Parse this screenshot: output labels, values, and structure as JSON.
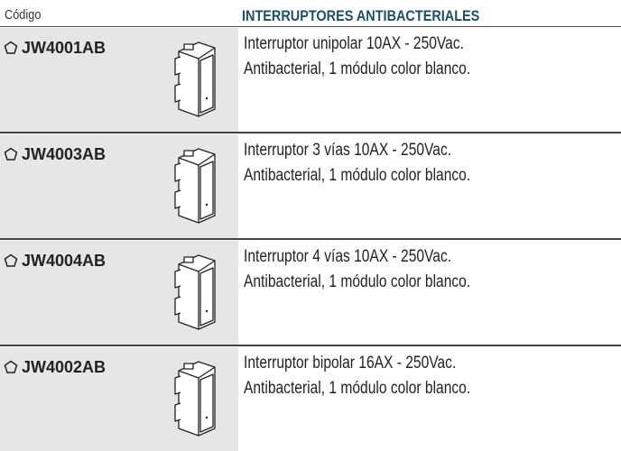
{
  "header": {
    "code_label": "Código",
    "title": "INTERRUPTORES ANTIBACTERIALES"
  },
  "rows": [
    {
      "code": "JW4001AB",
      "description": [
        "Interruptor unipolar 10AX - 250Vac.",
        "Antibacterial, 1 módulo color blanco."
      ]
    },
    {
      "code": "JW4003AB",
      "description": [
        "Interruptor 3 vías 10AX - 250Vac.",
        "Antibacterial, 1 módulo color blanco."
      ]
    },
    {
      "code": "JW4004AB",
      "description": [
        "Interruptor 4 vías 10AX - 250Vac.",
        "Antibacterial, 1 módulo color blanco."
      ]
    },
    {
      "code": "JW4002AB",
      "description": [
        "Interruptor bipolar 16AX - 250Vac.",
        "Antibacterial, 1 módulo color blanco."
      ]
    }
  ]
}
